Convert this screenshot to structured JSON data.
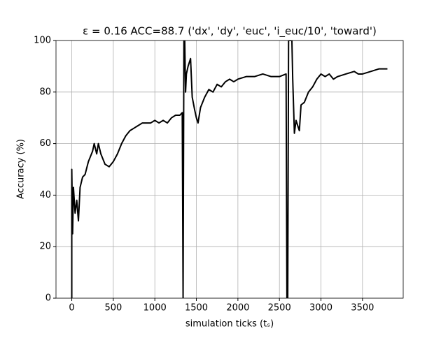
{
  "chart_data": {
    "type": "line",
    "title": "ε = 0.16 ACC=88.7 ('dx', 'dy', 'euc', 'i_euc/10', 'toward')",
    "xlabel": "simulation ticks (tₛ)",
    "ylabel": "Accuracy (%)",
    "x": [
      0,
      0,
      10,
      20,
      40,
      60,
      80,
      100,
      130,
      160,
      200,
      250,
      270,
      300,
      320,
      350,
      400,
      450,
      500,
      550,
      600,
      650,
      700,
      750,
      800,
      850,
      900,
      950,
      1000,
      1050,
      1100,
      1150,
      1200,
      1250,
      1300,
      1330,
      1340,
      1350,
      1360,
      1370,
      1380,
      1400,
      1430,
      1450,
      1480,
      1500,
      1520,
      1550,
      1600,
      1650,
      1700,
      1750,
      1800,
      1850,
      1900,
      1950,
      2000,
      2100,
      2200,
      2300,
      2400,
      2500,
      2580,
      2590,
      2600,
      2610,
      2650,
      2660,
      2680,
      2700,
      2740,
      2760,
      2800,
      2850,
      2900,
      2950,
      3000,
      3050,
      3100,
      3150,
      3200,
      3300,
      3400,
      3450,
      3500,
      3600,
      3700,
      3800
    ],
    "series": [
      {
        "name": "accuracy",
        "color": "#000000",
        "values": [
          0,
          50,
          25,
          43,
          33,
          38,
          30,
          43,
          47,
          48,
          53,
          57,
          60,
          56,
          60,
          56,
          52,
          51,
          53,
          56,
          60,
          63,
          65,
          66,
          67,
          68,
          68,
          68,
          69,
          68,
          69,
          68,
          70,
          71,
          71,
          72,
          0,
          100,
          100,
          80,
          87,
          90,
          93,
          78,
          73,
          70,
          68,
          74,
          78,
          81,
          80,
          83,
          82,
          84,
          85,
          84,
          85,
          86,
          86,
          87,
          86,
          86,
          87,
          0,
          0,
          100,
          100,
          85,
          64,
          69,
          65,
          75,
          76,
          80,
          82,
          85,
          87,
          86,
          87,
          85,
          86,
          87,
          88,
          87,
          87,
          88,
          89,
          89
        ]
      }
    ],
    "xlim": [
      -190,
      3990
    ],
    "ylim": [
      0,
      100
    ],
    "xticks": [
      0,
      500,
      1000,
      1500,
      2000,
      2500,
      3000,
      3500
    ],
    "yticks": [
      0,
      20,
      40,
      60,
      80,
      100
    ],
    "grid": true
  }
}
